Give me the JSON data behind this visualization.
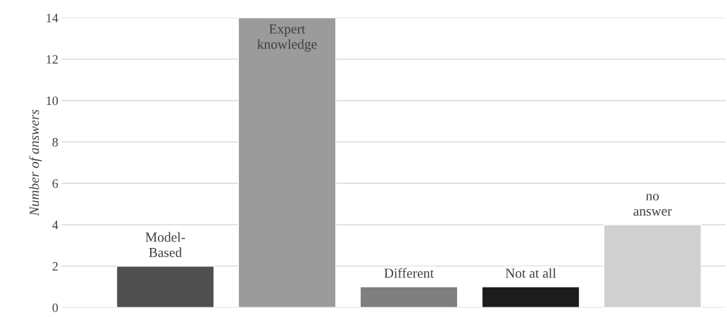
{
  "chart_data": {
    "type": "bar",
    "ylabel": "Number of answers",
    "categories": [
      "Model-\nBased",
      "Expert\nknowledge",
      "Different",
      "Not at all",
      "no\nanswer"
    ],
    "values": [
      2,
      14,
      1,
      1,
      4
    ],
    "colors": [
      "#4f4f4f",
      "#9b9b9b",
      "#7f7f7f",
      "#1c1c1c",
      "#d0d0d0"
    ],
    "ylim": [
      0,
      14
    ],
    "yticks": [
      0,
      2,
      4,
      6,
      8,
      10,
      12,
      14
    ],
    "grid": "y",
    "legend": false
  }
}
